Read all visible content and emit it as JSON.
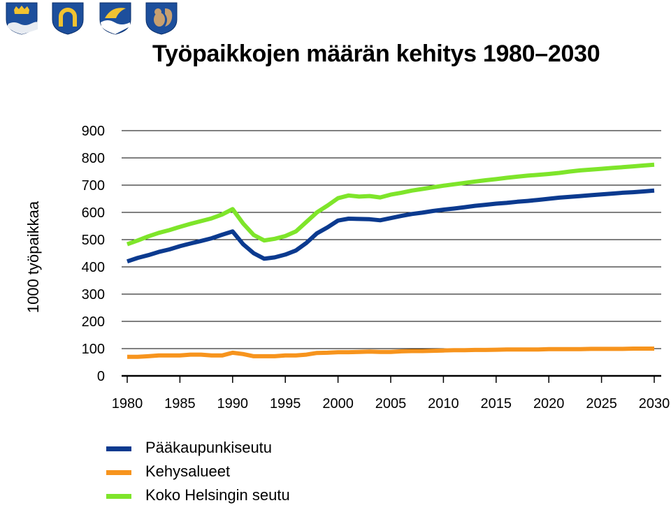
{
  "title": "Työpaikkojen määrän kehitys 1980–2030",
  "crests": [
    {
      "icon": "crest-crown-icon",
      "fill": "#1d4f9c"
    },
    {
      "icon": "crest-horseshoe-icon",
      "fill": "#1d4f9c"
    },
    {
      "icon": "crest-wave-icon",
      "fill": "#1d4f9c"
    },
    {
      "icon": "crest-squirrel-icon",
      "fill": "#1d4f9c"
    }
  ],
  "chart_data": {
    "type": "line",
    "title": "Työpaikkojen määrän kehitys 1980–2030",
    "xlabel": "",
    "ylabel": "1000 työpaikkaa",
    "xlim": [
      1980,
      2030
    ],
    "ylim": [
      0,
      900
    ],
    "y_ticks": [
      "0",
      "100",
      "200",
      "300",
      "400",
      "500",
      "600",
      "700",
      "800",
      "900"
    ],
    "x_ticks": [
      "1980",
      "1985",
      "1990",
      "1995",
      "2000",
      "2005",
      "2010",
      "2015",
      "2020",
      "2025",
      "2030"
    ],
    "grid": true,
    "legend_position": "bottom-left",
    "x": [
      1980,
      1981,
      1982,
      1983,
      1984,
      1985,
      1986,
      1987,
      1988,
      1989,
      1990,
      1991,
      1992,
      1993,
      1994,
      1995,
      1996,
      1997,
      1998,
      1999,
      2000,
      2001,
      2002,
      2003,
      2004,
      2005,
      2006,
      2007,
      2008,
      2009,
      2010,
      2011,
      2012,
      2013,
      2014,
      2015,
      2016,
      2017,
      2018,
      2019,
      2020,
      2021,
      2022,
      2023,
      2024,
      2025,
      2026,
      2027,
      2028,
      2029,
      2030
    ],
    "series": [
      {
        "name": "Pääkaupunkiseutu",
        "color": "#0b3a8f",
        "values": [
          420,
          433,
          443,
          455,
          464,
          476,
          486,
          495,
          505,
          518,
          530,
          483,
          450,
          430,
          435,
          445,
          460,
          488,
          523,
          545,
          570,
          577,
          576,
          575,
          571,
          579,
          587,
          594,
          599,
          605,
          610,
          614,
          619,
          624,
          628,
          632,
          635,
          639,
          642,
          646,
          650,
          654,
          657,
          660,
          663,
          666,
          669,
          672,
          674,
          677,
          680
        ]
      },
      {
        "name": "Kehysalueet",
        "color": "#f7941d",
        "values": [
          70,
          70,
          72,
          75,
          75,
          75,
          78,
          78,
          75,
          75,
          85,
          80,
          72,
          72,
          72,
          75,
          75,
          78,
          84,
          85,
          87,
          87,
          88,
          89,
          88,
          88,
          90,
          91,
          91,
          92,
          93,
          94,
          94,
          95,
          95,
          96,
          97,
          97,
          97,
          97,
          98,
          98,
          98,
          98,
          99,
          99,
          99,
          99,
          100,
          100,
          100
        ]
      },
      {
        "name": "Koko Helsingin seutu",
        "color": "#7ee52a",
        "values": [
          483,
          497,
          512,
          525,
          535,
          547,
          558,
          568,
          578,
          592,
          612,
          559,
          517,
          497,
          503,
          513,
          530,
          565,
          600,
          625,
          652,
          662,
          658,
          660,
          655,
          665,
          672,
          680,
          686,
          692,
          698,
          703,
          708,
          713,
          718,
          722,
          727,
          731,
          735,
          738,
          741,
          745,
          750,
          754,
          757,
          760,
          763,
          766,
          769,
          772,
          775
        ]
      }
    ]
  }
}
